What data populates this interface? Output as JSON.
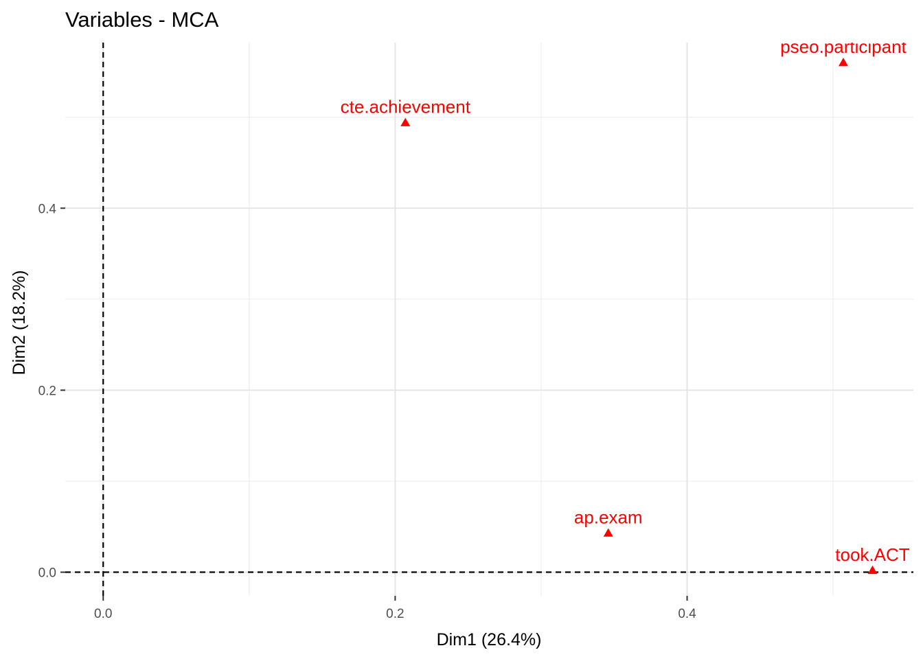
{
  "chart_data": {
    "type": "scatter",
    "title": "Variables - MCA",
    "xlabel": "Dim1 (26.4%)",
    "ylabel": "Dim2 (18.2%)",
    "xlim": [
      -0.026,
      0.555
    ],
    "ylim": [
      -0.026,
      0.582
    ],
    "x_ticks": [
      0.0,
      0.2,
      0.4
    ],
    "x_tick_labels": [
      "0.0",
      "0.2",
      "0.4"
    ],
    "y_ticks": [
      0.0,
      0.2,
      0.4
    ],
    "y_tick_labels": [
      "0.0",
      "0.2",
      "0.4"
    ],
    "grid": true,
    "reference_lines": {
      "x": 0,
      "y": 0,
      "style": "dashed"
    },
    "point_color": "#ff0000",
    "marker": "triangle",
    "points": [
      {
        "label": "cte.achievement",
        "x": 0.207,
        "y": 0.494
      },
      {
        "label": "pseo.participant",
        "x": 0.507,
        "y": 0.56
      },
      {
        "label": "ap.exam",
        "x": 0.346,
        "y": 0.043
      },
      {
        "label": "took.ACT",
        "x": 0.527,
        "y": 0.002
      }
    ]
  }
}
